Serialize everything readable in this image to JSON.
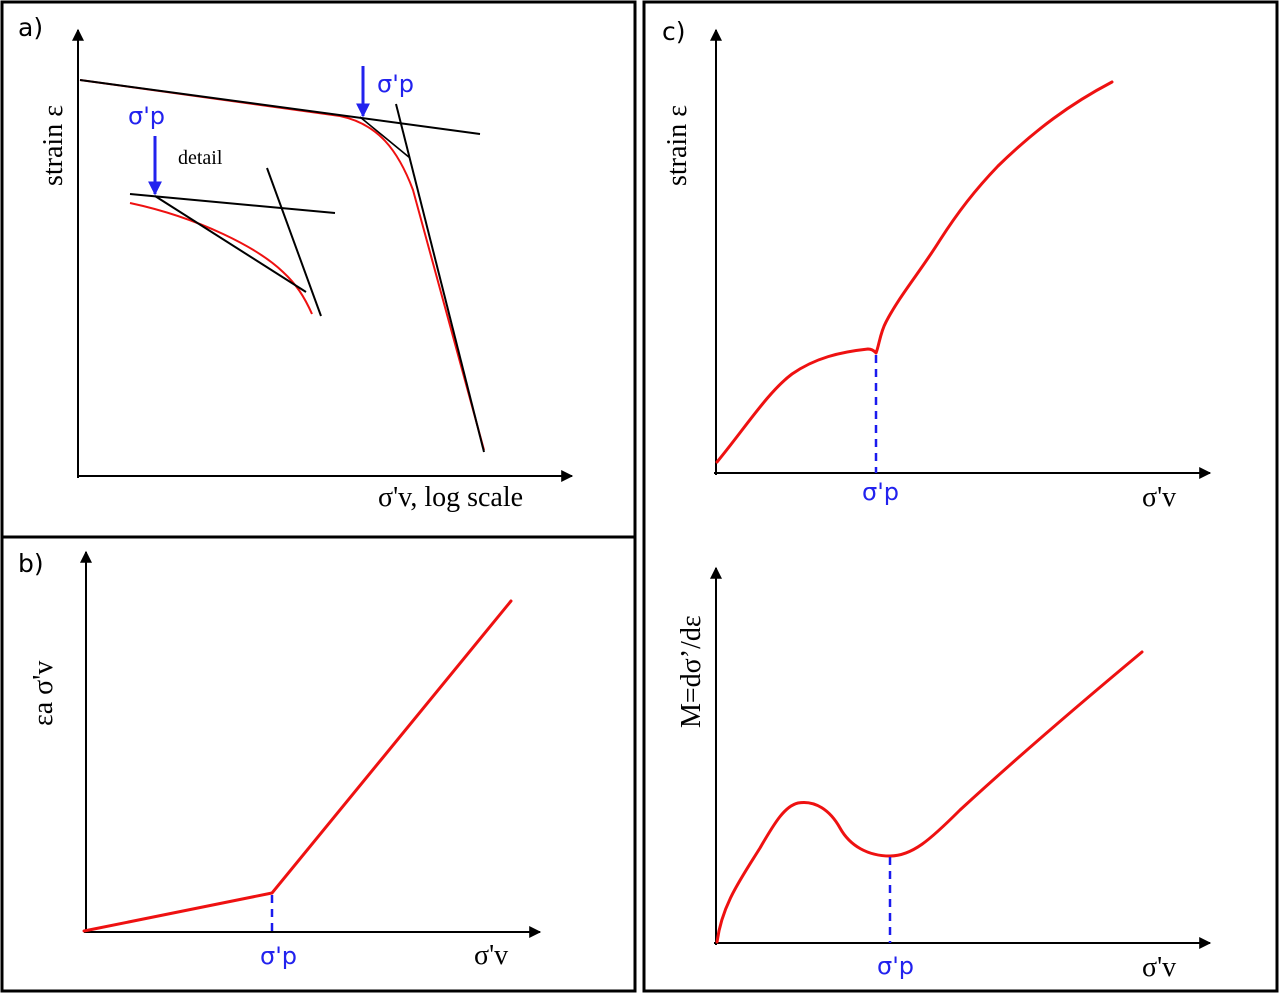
{
  "panel_a": {
    "tag": "a)",
    "y_label": "strain ε",
    "x_label": "σ'v, log scale",
    "marker_main": "σ'p",
    "marker_detail": "σ'p",
    "detail_label": "detail"
  },
  "panel_b": {
    "tag": "b)",
    "y_label": "εa σ'v",
    "x_label": "σ'v",
    "marker": "σ'p"
  },
  "panel_c": {
    "tag": "c)",
    "top": {
      "y_label": "strain ε",
      "x_label": "σ'v",
      "marker": "σ'p"
    },
    "bottom": {
      "y_label": "M=dσ’/dε",
      "x_label": "σ'v",
      "marker": "σ'p"
    }
  },
  "colors": {
    "curve": "#ee1111",
    "marker": "#2222ee",
    "lines": "#000000"
  }
}
